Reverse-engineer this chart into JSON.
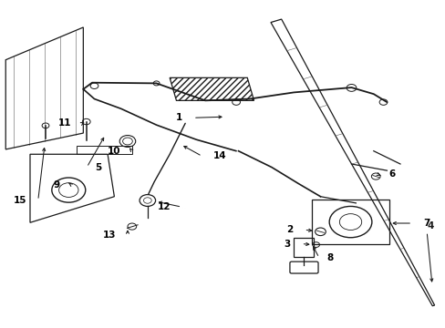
{
  "bg_color": "#ffffff",
  "line_color": "#1a1a1a",
  "label_color": "#000000",
  "figsize": [
    4.89,
    3.6
  ],
  "dpi": 100,
  "fontsize": 7.5
}
